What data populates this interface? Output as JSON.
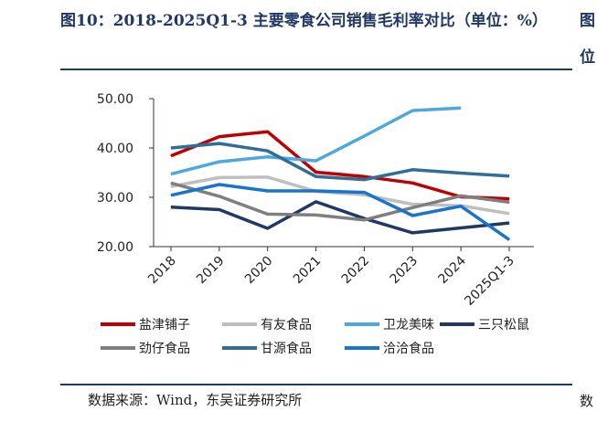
{
  "title": "图10：2018-2025Q1-3 主要零食公司销售毛利率对比（单位：%）",
  "source": "数据来源：Wind，东吴证券研究所",
  "edge_text": {
    "top1": "图",
    "top2": "位",
    "bottom": "数"
  },
  "chart_data": {
    "type": "line",
    "title": "",
    "xlabel": "",
    "ylabel": "",
    "ylim": [
      20,
      50
    ],
    "yticks": [
      "20.00",
      "30.00",
      "40.00",
      "50.00"
    ],
    "categories": [
      "2018",
      "2019",
      "2020",
      "2021",
      "2022",
      "2023",
      "2024",
      "2025Q1-3"
    ],
    "grid": false,
    "legend_position": "bottom",
    "series": [
      {
        "name": "盐津铺子",
        "color": "#c00000",
        "values": [
          38.4,
          42.3,
          43.3,
          35.1,
          34.2,
          32.9,
          30.1,
          29.7
        ]
      },
      {
        "name": "有友食品",
        "color": "#bfbfbf",
        "values": [
          32.2,
          34.0,
          34.1,
          31.2,
          30.5,
          28.6,
          28.3,
          26.7
        ]
      },
      {
        "name": "卫龙美味",
        "color": "#4ea8e0",
        "values": [
          34.7,
          37.2,
          38.2,
          37.4,
          42.4,
          47.6,
          48.1,
          null
        ]
      },
      {
        "name": "三只松鼠",
        "color": "#1f3864",
        "values": [
          28.0,
          27.5,
          23.7,
          29.1,
          25.7,
          22.8,
          23.8,
          24.8
        ]
      },
      {
        "name": "劲仔食品",
        "color": "#7f7f7f",
        "values": [
          32.9,
          30.2,
          26.6,
          26.4,
          25.4,
          27.9,
          30.3,
          29.0
        ]
      },
      {
        "name": "甘源食品",
        "color": "#2f6e99",
        "values": [
          40.0,
          40.9,
          39.4,
          34.2,
          33.6,
          35.6,
          34.9,
          34.3
        ]
      },
      {
        "name": "洽洽食品",
        "color": "#1874cd",
        "values": [
          30.4,
          32.6,
          31.3,
          31.3,
          31.0,
          26.3,
          28.2,
          21.4
        ]
      }
    ]
  }
}
